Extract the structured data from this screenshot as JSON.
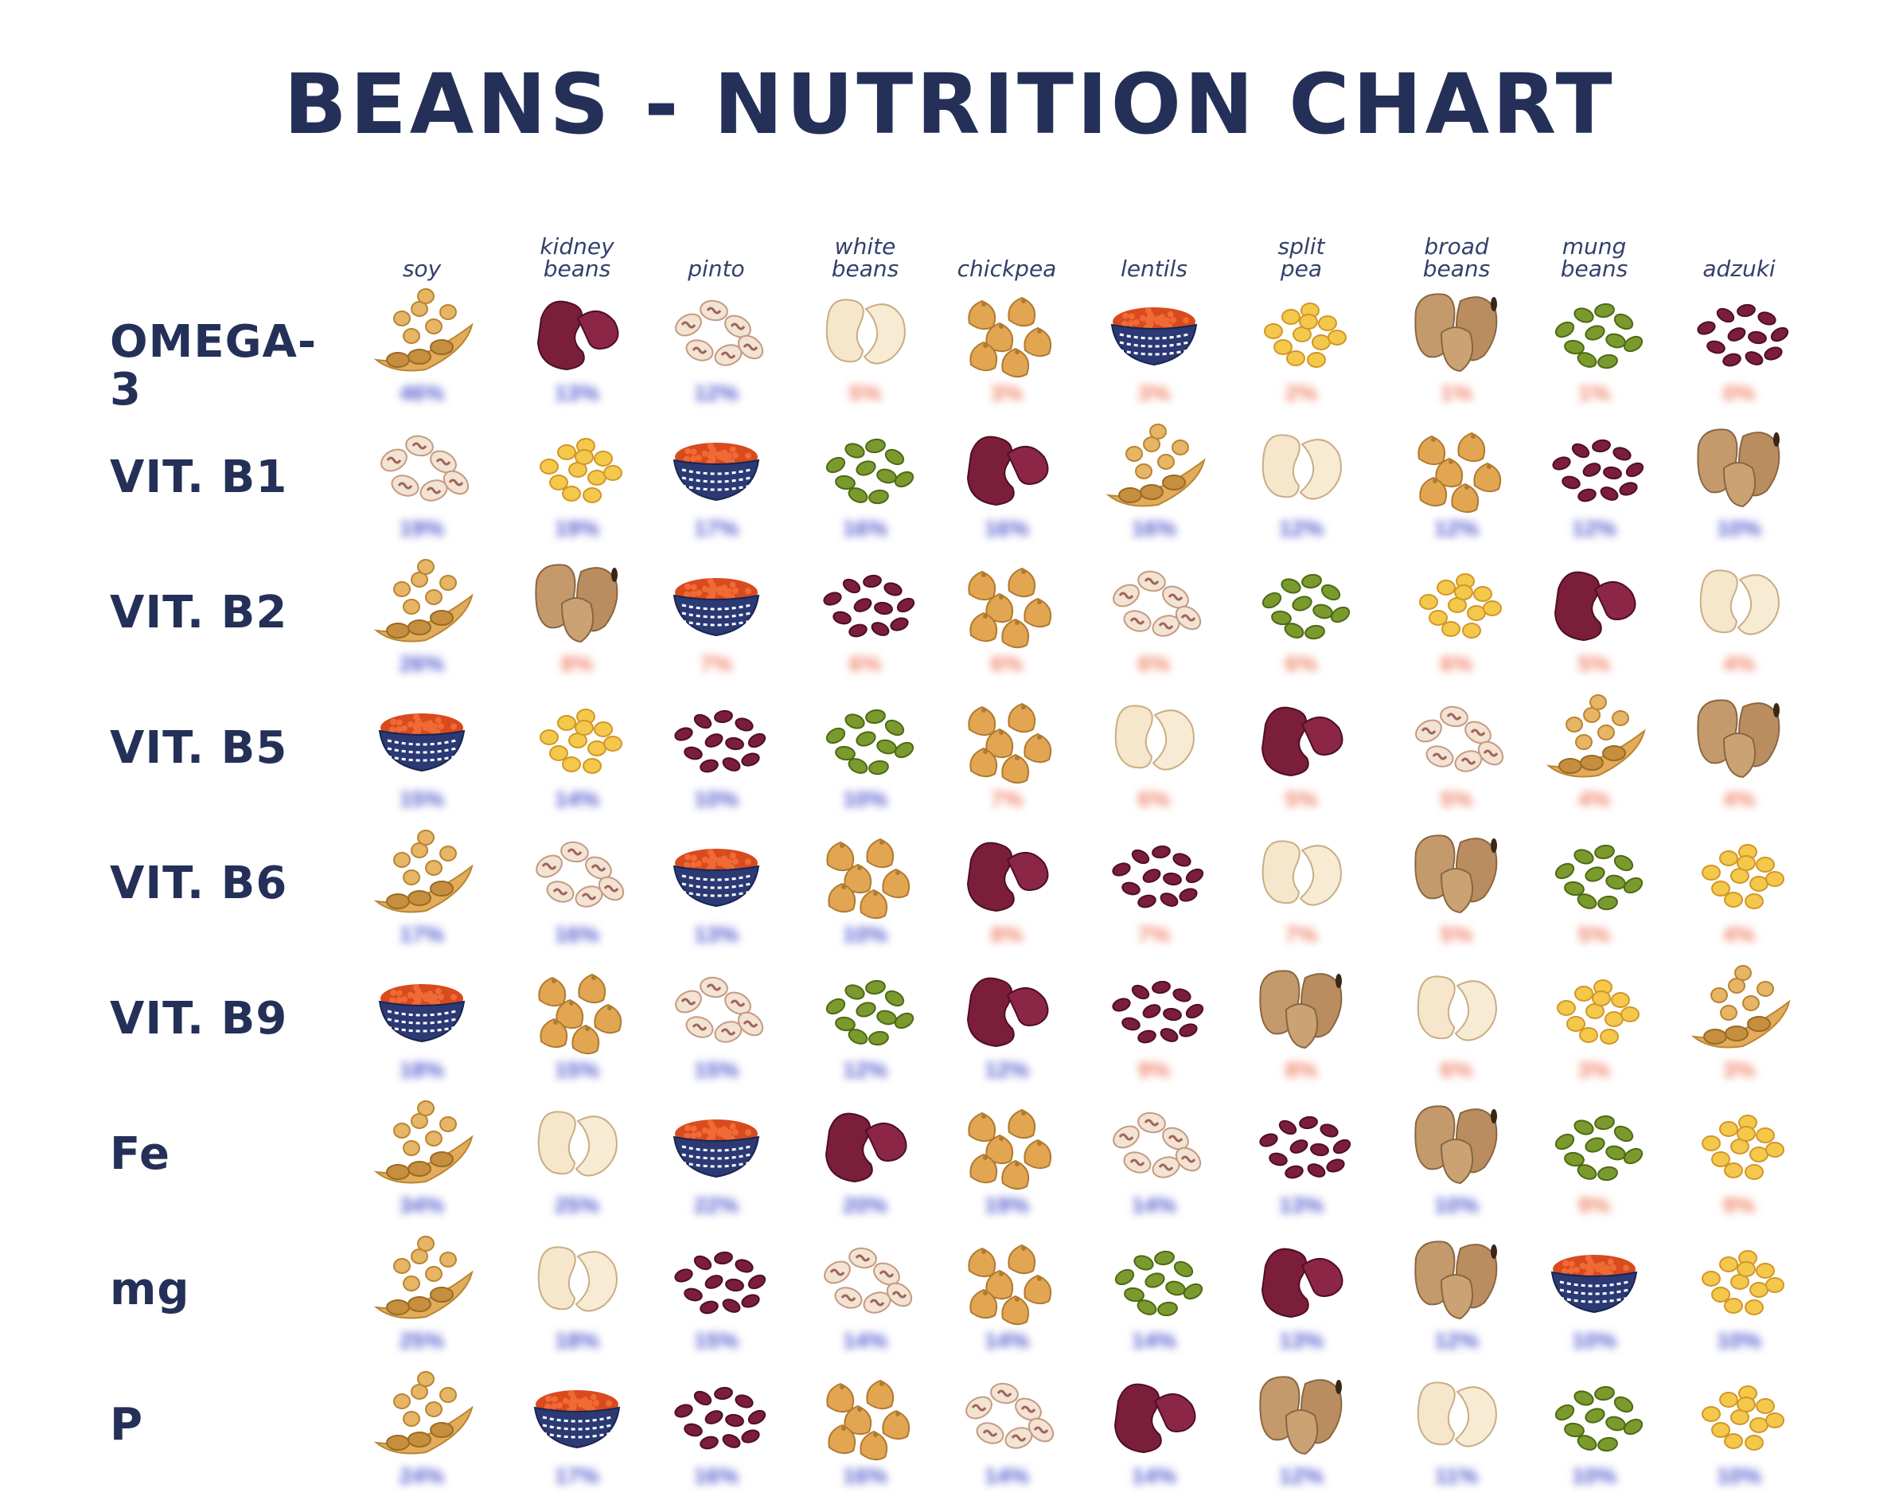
{
  "title": "BEANS - NUTRITION CHART",
  "colors": {
    "heading": "#243058",
    "pct_high": "#5a5fd0",
    "pct_low": "#f0836a"
  },
  "columns": [
    {
      "line1": "",
      "line2": "soy"
    },
    {
      "line1": "kidney",
      "line2": "beans"
    },
    {
      "line1": "",
      "line2": "pinto"
    },
    {
      "line1": "white",
      "line2": "beans"
    },
    {
      "line1": "",
      "line2": "chickpea"
    },
    {
      "line1": "",
      "line2": "lentils"
    },
    {
      "line1": "split",
      "line2": "pea"
    },
    {
      "line1": "broad",
      "line2": "beans"
    },
    {
      "line1": "mung",
      "line2": "beans"
    },
    {
      "line1": "",
      "line2": "adzuki"
    }
  ],
  "rows": [
    {
      "label": "OMEGA-3",
      "cells": [
        {
          "bean": "soy",
          "pct": "46%",
          "level": "high"
        },
        {
          "bean": "kidney",
          "pct": "13%",
          "level": "high"
        },
        {
          "bean": "pinto",
          "pct": "12%",
          "level": "high"
        },
        {
          "bean": "white",
          "pct": "5%",
          "level": "low"
        },
        {
          "bean": "chickpea",
          "pct": "3%",
          "level": "low"
        },
        {
          "bean": "lentil",
          "pct": "3%",
          "level": "low"
        },
        {
          "bean": "splitpea",
          "pct": "2%",
          "level": "low"
        },
        {
          "bean": "broad",
          "pct": "1%",
          "level": "low"
        },
        {
          "bean": "mung",
          "pct": "1%",
          "level": "low"
        },
        {
          "bean": "adzuki",
          "pct": "0%",
          "level": "low"
        }
      ]
    },
    {
      "label": "VIT. B1",
      "cells": [
        {
          "bean": "pinto",
          "pct": "19%",
          "level": "high"
        },
        {
          "bean": "splitpea",
          "pct": "19%",
          "level": "high"
        },
        {
          "bean": "lentil",
          "pct": "17%",
          "level": "high"
        },
        {
          "bean": "mung",
          "pct": "16%",
          "level": "high"
        },
        {
          "bean": "kidney",
          "pct": "16%",
          "level": "high"
        },
        {
          "bean": "soy",
          "pct": "16%",
          "level": "high"
        },
        {
          "bean": "white",
          "pct": "12%",
          "level": "high"
        },
        {
          "bean": "chickpea",
          "pct": "12%",
          "level": "high"
        },
        {
          "bean": "adzuki",
          "pct": "12%",
          "level": "high"
        },
        {
          "bean": "broad",
          "pct": "10%",
          "level": "high"
        }
      ]
    },
    {
      "label": "VIT. B2",
      "cells": [
        {
          "bean": "soy",
          "pct": "26%",
          "level": "high"
        },
        {
          "bean": "broad",
          "pct": "8%",
          "level": "low"
        },
        {
          "bean": "lentil",
          "pct": "7%",
          "level": "low"
        },
        {
          "bean": "adzuki",
          "pct": "6%",
          "level": "low"
        },
        {
          "bean": "chickpea",
          "pct": "6%",
          "level": "low"
        },
        {
          "bean": "pinto",
          "pct": "6%",
          "level": "low"
        },
        {
          "bean": "mung",
          "pct": "6%",
          "level": "low"
        },
        {
          "bean": "splitpea",
          "pct": "6%",
          "level": "low"
        },
        {
          "bean": "kidney",
          "pct": "5%",
          "level": "low"
        },
        {
          "bean": "white",
          "pct": "4%",
          "level": "low"
        }
      ]
    },
    {
      "label": "VIT. B5",
      "cells": [
        {
          "bean": "lentil",
          "pct": "15%",
          "level": "high"
        },
        {
          "bean": "splitpea",
          "pct": "14%",
          "level": "high"
        },
        {
          "bean": "adzuki",
          "pct": "10%",
          "level": "high"
        },
        {
          "bean": "mung",
          "pct": "10%",
          "level": "high"
        },
        {
          "bean": "chickpea",
          "pct": "7%",
          "level": "low"
        },
        {
          "bean": "white",
          "pct": "6%",
          "level": "low"
        },
        {
          "bean": "kidney",
          "pct": "5%",
          "level": "low"
        },
        {
          "bean": "pinto",
          "pct": "5%",
          "level": "low"
        },
        {
          "bean": "soy",
          "pct": "4%",
          "level": "low"
        },
        {
          "bean": "broad",
          "pct": "4%",
          "level": "low"
        }
      ]
    },
    {
      "label": "VIT. B6",
      "cells": [
        {
          "bean": "soy",
          "pct": "17%",
          "level": "high"
        },
        {
          "bean": "pinto",
          "pct": "16%",
          "level": "high"
        },
        {
          "bean": "lentil",
          "pct": "13%",
          "level": "high"
        },
        {
          "bean": "chickpea",
          "pct": "10%",
          "level": "high"
        },
        {
          "bean": "kidney",
          "pct": "8%",
          "level": "low"
        },
        {
          "bean": "adzuki",
          "pct": "7%",
          "level": "low"
        },
        {
          "bean": "white",
          "pct": "7%",
          "level": "low"
        },
        {
          "bean": "broad",
          "pct": "5%",
          "level": "low"
        },
        {
          "bean": "mung",
          "pct": "5%",
          "level": "low"
        },
        {
          "bean": "splitpea",
          "pct": "4%",
          "level": "low"
        }
      ]
    },
    {
      "label": "VIT. B9",
      "cells": [
        {
          "bean": "lentil",
          "pct": "18%",
          "level": "high"
        },
        {
          "bean": "chickpea",
          "pct": "15%",
          "level": "high"
        },
        {
          "bean": "pinto",
          "pct": "15%",
          "level": "high"
        },
        {
          "bean": "mung",
          "pct": "12%",
          "level": "high"
        },
        {
          "bean": "kidney",
          "pct": "12%",
          "level": "high"
        },
        {
          "bean": "adzuki",
          "pct": "9%",
          "level": "low"
        },
        {
          "bean": "broad",
          "pct": "8%",
          "level": "low"
        },
        {
          "bean": "white",
          "pct": "6%",
          "level": "low"
        },
        {
          "bean": "splitpea",
          "pct": "3%",
          "level": "low"
        },
        {
          "bean": "soy",
          "pct": "3%",
          "level": "low"
        }
      ]
    },
    {
      "label": "Fe",
      "cells": [
        {
          "bean": "soy",
          "pct": "34%",
          "level": "high"
        },
        {
          "bean": "white",
          "pct": "25%",
          "level": "high"
        },
        {
          "bean": "lentil",
          "pct": "22%",
          "level": "high"
        },
        {
          "bean": "kidney",
          "pct": "20%",
          "level": "high"
        },
        {
          "bean": "chickpea",
          "pct": "19%",
          "level": "high"
        },
        {
          "bean": "pinto",
          "pct": "14%",
          "level": "high"
        },
        {
          "bean": "adzuki",
          "pct": "13%",
          "level": "high"
        },
        {
          "bean": "broad",
          "pct": "10%",
          "level": "high"
        },
        {
          "bean": "mung",
          "pct": "9%",
          "level": "low"
        },
        {
          "bean": "splitpea",
          "pct": "9%",
          "level": "low"
        }
      ]
    },
    {
      "label": "mg",
      "cells": [
        {
          "bean": "soy",
          "pct": "25%",
          "level": "high"
        },
        {
          "bean": "white",
          "pct": "18%",
          "level": "high"
        },
        {
          "bean": "adzuki",
          "pct": "15%",
          "level": "high"
        },
        {
          "bean": "pinto",
          "pct": "14%",
          "level": "high"
        },
        {
          "bean": "chickpea",
          "pct": "14%",
          "level": "high"
        },
        {
          "bean": "mung",
          "pct": "14%",
          "level": "high"
        },
        {
          "bean": "kidney",
          "pct": "13%",
          "level": "high"
        },
        {
          "bean": "broad",
          "pct": "12%",
          "level": "high"
        },
        {
          "bean": "lentil",
          "pct": "10%",
          "level": "high"
        },
        {
          "bean": "splitpea",
          "pct": "10%",
          "level": "high"
        }
      ]
    },
    {
      "label": "P",
      "cells": [
        {
          "bean": "soy",
          "pct": "24%",
          "level": "high"
        },
        {
          "bean": "lentil",
          "pct": "17%",
          "level": "high"
        },
        {
          "bean": "adzuki",
          "pct": "16%",
          "level": "high"
        },
        {
          "bean": "chickpea",
          "pct": "16%",
          "level": "high"
        },
        {
          "bean": "pinto",
          "pct": "14%",
          "level": "high"
        },
        {
          "bean": "kidney",
          "pct": "14%",
          "level": "high"
        },
        {
          "bean": "broad",
          "pct": "12%",
          "level": "high"
        },
        {
          "bean": "white",
          "pct": "11%",
          "level": "high"
        },
        {
          "bean": "mung",
          "pct": "10%",
          "level": "high"
        },
        {
          "bean": "splitpea",
          "pct": "10%",
          "level": "high"
        }
      ]
    }
  ]
}
